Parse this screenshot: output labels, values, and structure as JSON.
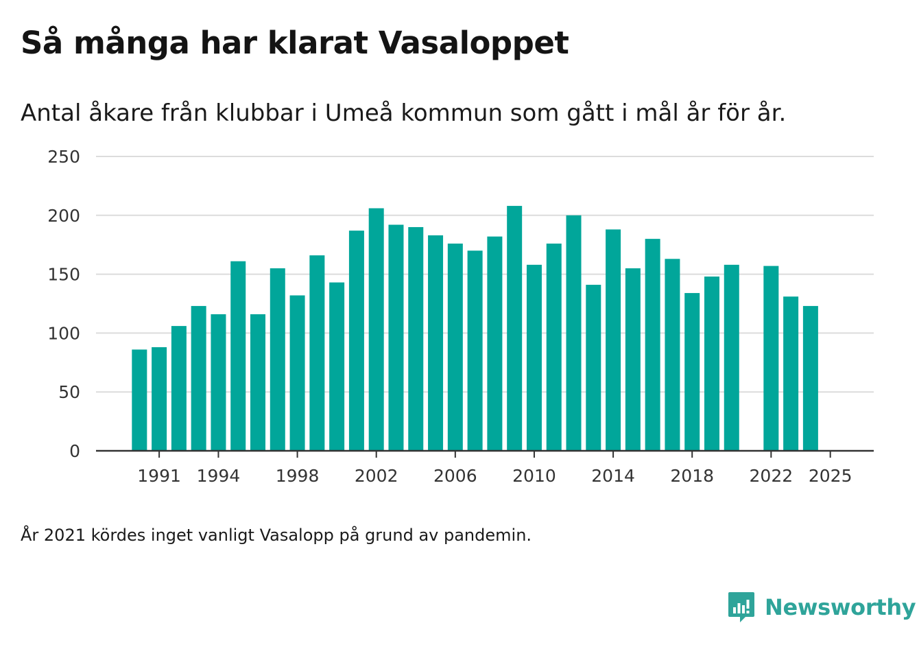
{
  "header": {
    "title": "Så många har klarat Vasaloppet",
    "subtitle": "Antal åkare från klubbar i Umeå kommun som gått i mål år för år."
  },
  "footer": {
    "note": "År 2021 kördes inget vanligt Vasalopp på grund av pandemin.",
    "brand": "Newsworthy"
  },
  "colors": {
    "bar": "#01a69a",
    "grid": "#dcdcdc",
    "axis": "#333333",
    "brand": "#2fa49a"
  },
  "chart_data": {
    "type": "bar",
    "title": "Så många har klarat Vasaloppet",
    "subtitle": "Antal åkare från klubbar i Umeå kommun som gått i mål år för år.",
    "xlabel": "",
    "ylabel": "",
    "ylim": [
      0,
      250
    ],
    "yticks": [
      0,
      50,
      100,
      150,
      200,
      250
    ],
    "xticks": [
      1991,
      1994,
      1998,
      2002,
      2006,
      2010,
      2014,
      2018,
      2022,
      2025
    ],
    "xlim": [
      1987.8,
      2027.2
    ],
    "grid": true,
    "legend": "none",
    "categories": [
      1990,
      1991,
      1992,
      1993,
      1994,
      1995,
      1996,
      1997,
      1998,
      1999,
      2000,
      2001,
      2002,
      2003,
      2004,
      2005,
      2006,
      2007,
      2008,
      2009,
      2010,
      2011,
      2012,
      2013,
      2014,
      2015,
      2016,
      2017,
      2018,
      2019,
      2020,
      2022,
      2023,
      2024,
      2025
    ],
    "values": [
      86,
      88,
      106,
      123,
      116,
      161,
      116,
      155,
      132,
      166,
      143,
      187,
      206,
      192,
      190,
      183,
      176,
      170,
      182,
      208,
      158,
      176,
      200,
      141,
      188,
      155,
      180,
      163,
      134,
      148,
      158,
      157,
      131,
      123,
      0
    ]
  }
}
